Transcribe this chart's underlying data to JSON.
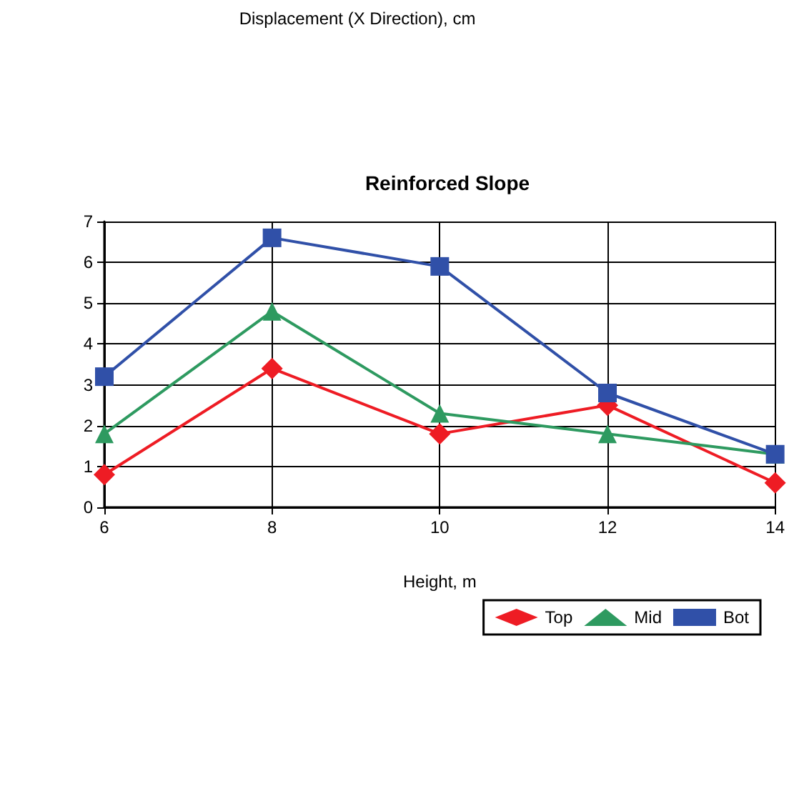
{
  "chart_data": {
    "type": "line",
    "title": "Reinforced Slope",
    "annotations": [
      "Displacement (X Direction), cm"
    ],
    "xlabel": "Height, m",
    "x": [
      6,
      8,
      10,
      12,
      14
    ],
    "series": [
      {
        "name": "Top",
        "color": "#ee1c24",
        "marker": "diamond",
        "values": [
          0.8,
          3.4,
          1.8,
          2.5,
          0.6
        ]
      },
      {
        "name": "Mid",
        "color": "#2e9a60",
        "marker": "triangle",
        "values": [
          1.8,
          4.8,
          2.3,
          1.8,
          1.3
        ]
      },
      {
        "name": "Bot",
        "color": "#3050a8",
        "marker": "square",
        "values": [
          3.2,
          6.6,
          5.9,
          2.8,
          1.3
        ]
      }
    ],
    "xlim": [
      6,
      14
    ],
    "xticks": [
      6,
      8,
      10,
      12,
      14
    ],
    "ylim": [
      0,
      7
    ],
    "yticks": [
      0,
      1,
      2,
      3,
      4,
      5,
      6,
      7
    ],
    "grid": true,
    "legend": "bottom right",
    "line_style": "solid"
  }
}
